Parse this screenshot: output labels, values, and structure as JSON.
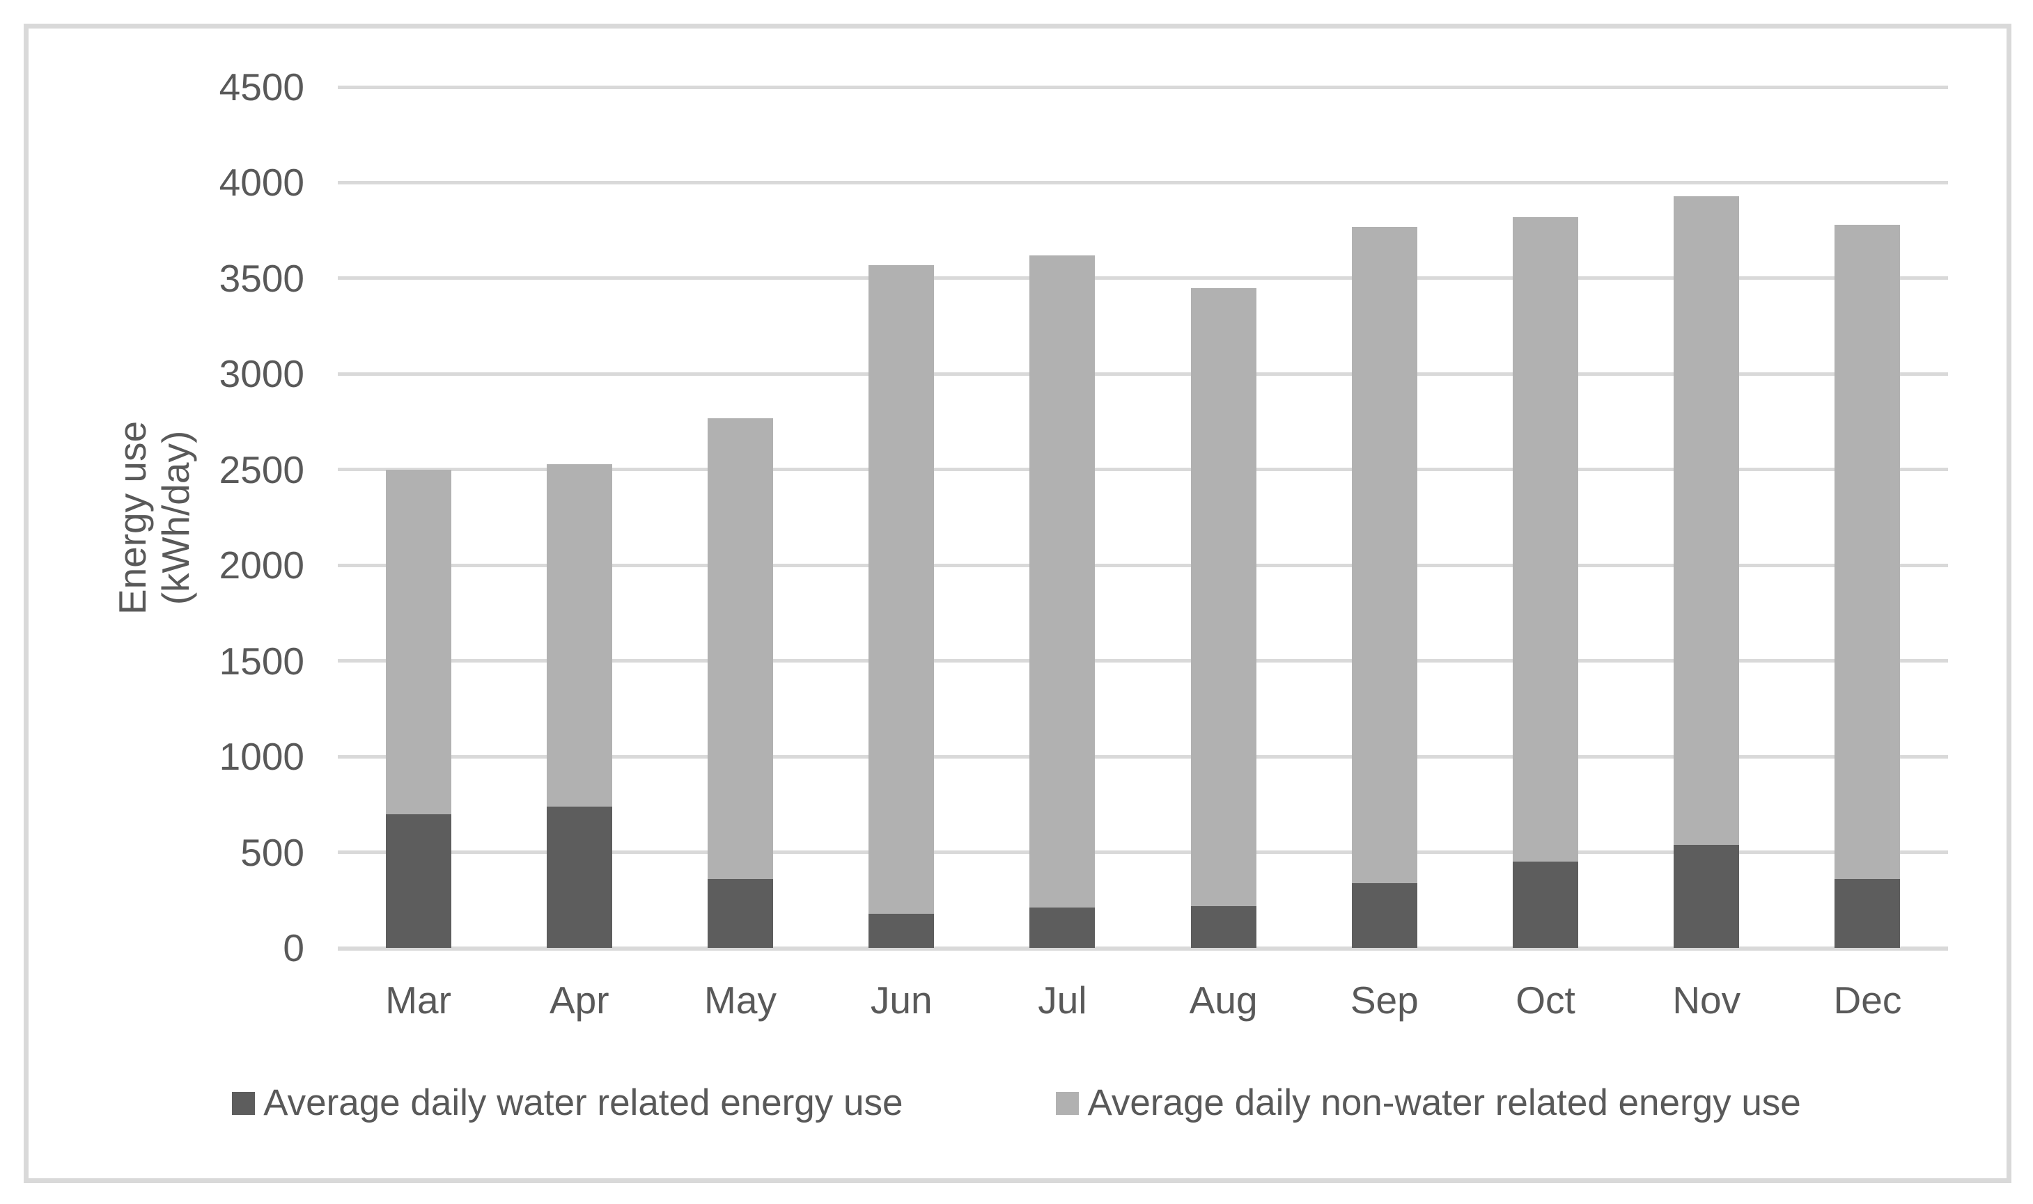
{
  "chart_data": {
    "type": "bar",
    "stacked": true,
    "title": "",
    "xlabel": "",
    "ylabel": "Energy use (kWh/day)",
    "ylabel_lines": [
      "Energy use",
      "(kWh/day)"
    ],
    "categories": [
      "Mar",
      "Apr",
      "May",
      "Jun",
      "Jul",
      "Aug",
      "Sep",
      "Oct",
      "Nov",
      "Dec"
    ],
    "series": [
      {
        "name": "Average daily water related energy use",
        "color": "#5d5d5d",
        "values": [
          700,
          740,
          360,
          180,
          210,
          220,
          340,
          450,
          540,
          360
        ]
      },
      {
        "name": "Average daily non-water related energy use",
        "color": "#b1b1b1",
        "values": [
          1800,
          1790,
          2410,
          3390,
          3410,
          3230,
          3430,
          3370,
          3390,
          3420
        ]
      }
    ],
    "stack_totals": [
      2500,
      2530,
      2770,
      3570,
      3620,
      3450,
      3770,
      3820,
      3930,
      3780
    ],
    "ylim": [
      0,
      4500
    ],
    "yticks": [
      0,
      500,
      1000,
      1500,
      2000,
      2500,
      3000,
      3500,
      4000,
      4500
    ],
    "grid": true,
    "legend_position": "bottom"
  },
  "colors": {
    "gridline": "#d9d9d9",
    "axis_line": "#d9d9d9",
    "border": "#d9d9d9",
    "text": "#595959"
  }
}
